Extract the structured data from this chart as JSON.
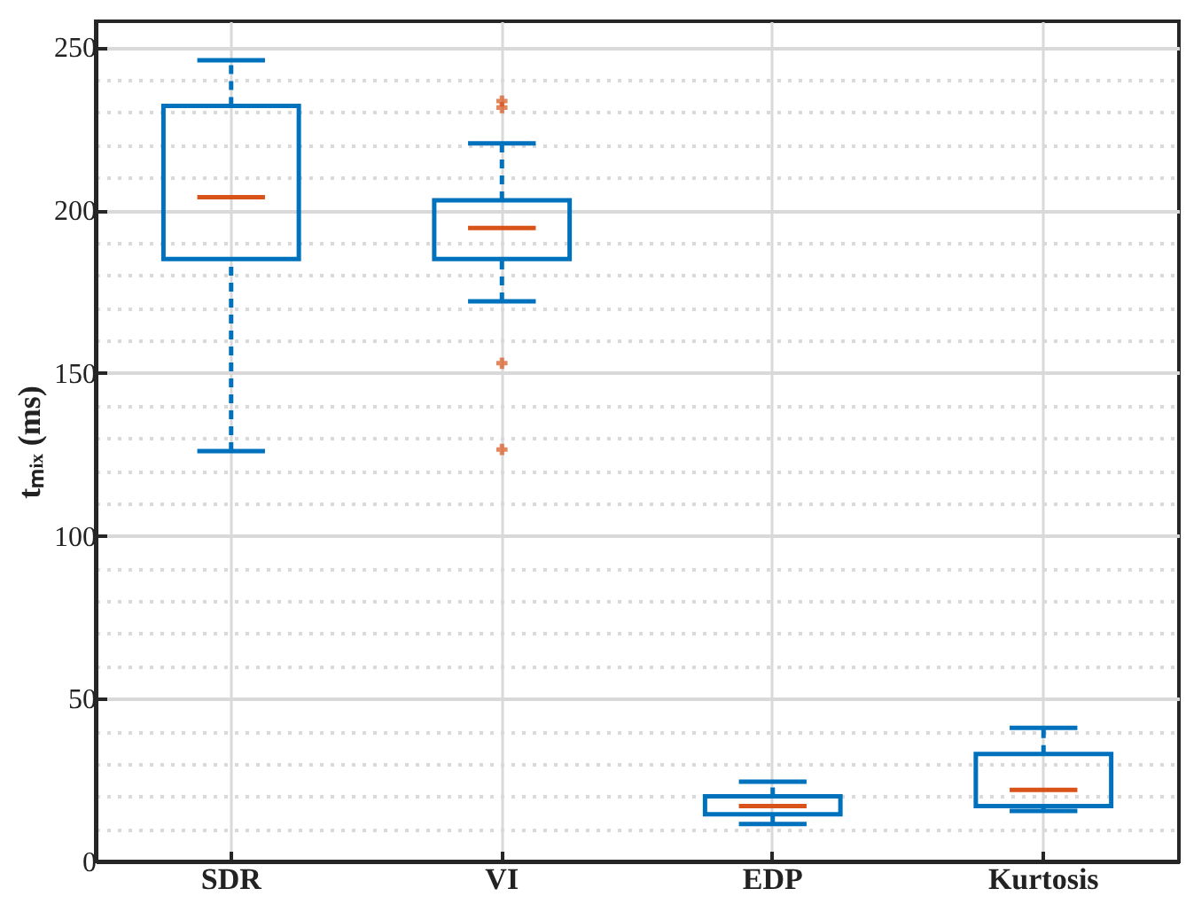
{
  "chart_data": {
    "type": "box",
    "ylabel": "tₘᵢₓ (ms)",
    "categories": [
      "SDR",
      "VI",
      "EDP",
      "Kurtosis"
    ],
    "series": [
      {
        "type": "box",
        "color": "#0072bd",
        "boxes": [
          {
            "low": 126,
            "q1": 185,
            "median": 204,
            "q3": 232,
            "high": 246
          },
          {
            "low": 172,
            "q1": 185,
            "median": 194.5,
            "q3": 203,
            "high": 220.5,
            "outliers": [
              233.5,
              231.5,
              153,
              126.5
            ]
          },
          {
            "low": 11.5,
            "q1": 14.5,
            "median": 17,
            "q3": 20,
            "high": 24.5
          },
          {
            "low": 15.5,
            "q1": 17,
            "median": 22,
            "q3": 33,
            "high": 41
          }
        ]
      }
    ],
    "ylim": [
      0,
      258
    ],
    "yticks": [
      0,
      {
        "value": 10,
        "label": null
      },
      {
        "value": 20,
        "label": null
      },
      {
        "value": 30,
        "label": null
      },
      {
        "value": 40,
        "label": null
      },
      50,
      {
        "value": 60,
        "label": null
      },
      {
        "value": 70,
        "label": null
      },
      {
        "value": 80,
        "label": null
      },
      {
        "value": 90,
        "label": null
      },
      100,
      {
        "value": 110,
        "label": null
      },
      {
        "value": 120,
        "label": null
      },
      {
        "value": 130,
        "label": null
      },
      {
        "value": 140,
        "label": null
      },
      150,
      {
        "value": 160,
        "label": null
      },
      {
        "value": 170,
        "label": null
      },
      {
        "value": 180,
        "label": null
      },
      {
        "value": 190,
        "label": null
      },
      200,
      {
        "value": 210,
        "label": null
      },
      {
        "value": 220,
        "label": null
      },
      {
        "value": 230,
        "label": null
      },
      {
        "value": 240,
        "label": null
      },
      250
    ],
    "grid": true,
    "line_style": "dashed"
  }
}
